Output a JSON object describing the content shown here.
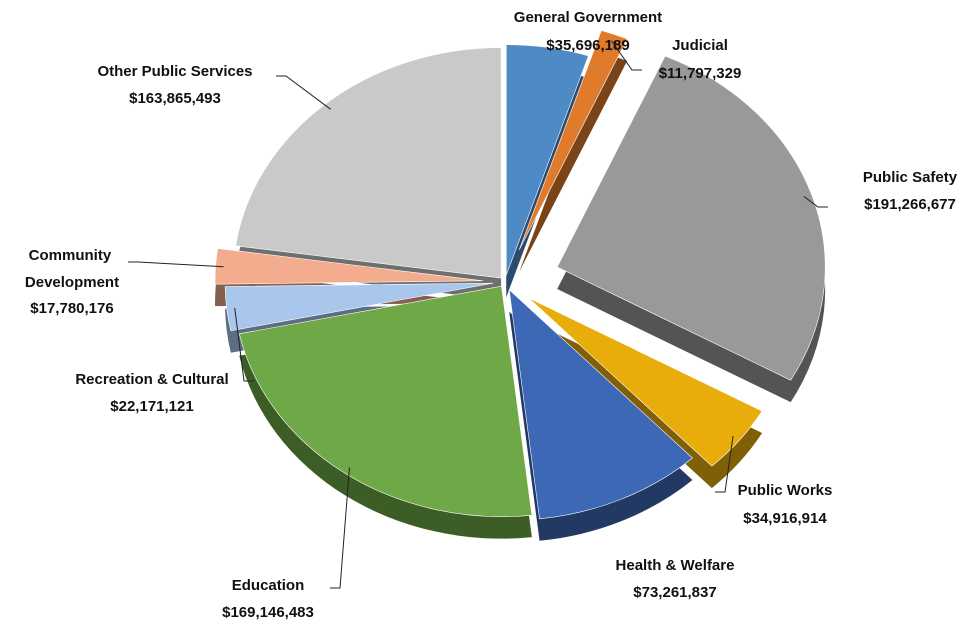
{
  "chart_data": {
    "type": "pie",
    "title": "",
    "legend": "none",
    "slices": [
      {
        "name": "General Government",
        "value": 35696189,
        "label": "$35,696,189",
        "color": "#4e8ac6"
      },
      {
        "name": "Judicial",
        "value": 11797329,
        "label": "$11,797,329",
        "color": "#e07b2c"
      },
      {
        "name": "Public Safety",
        "value": 191266677,
        "label": "$191,266,677",
        "color": "#999999"
      },
      {
        "name": "Public Works",
        "value": 34916914,
        "label": "$34,916,914",
        "color": "#e8ad0a"
      },
      {
        "name": "Health & Welfare",
        "value": 73261837,
        "label": "$73,261,837",
        "color": "#3d68b5"
      },
      {
        "name": "Education",
        "value": 169146483,
        "label": "$169,146,483",
        "color": "#6fa947"
      },
      {
        "name": "Recreation & Cultural",
        "value": 22171121,
        "label": "$22,171,121",
        "color": "#a9c7ec"
      },
      {
        "name": "Community Development",
        "value": 17780176,
        "label": "$17,780,176",
        "color": "#f3ac8e"
      },
      {
        "name": "Other Public Services",
        "value": 163865493,
        "label": "$163,865,493",
        "color": "#c9c9c9"
      }
    ]
  }
}
